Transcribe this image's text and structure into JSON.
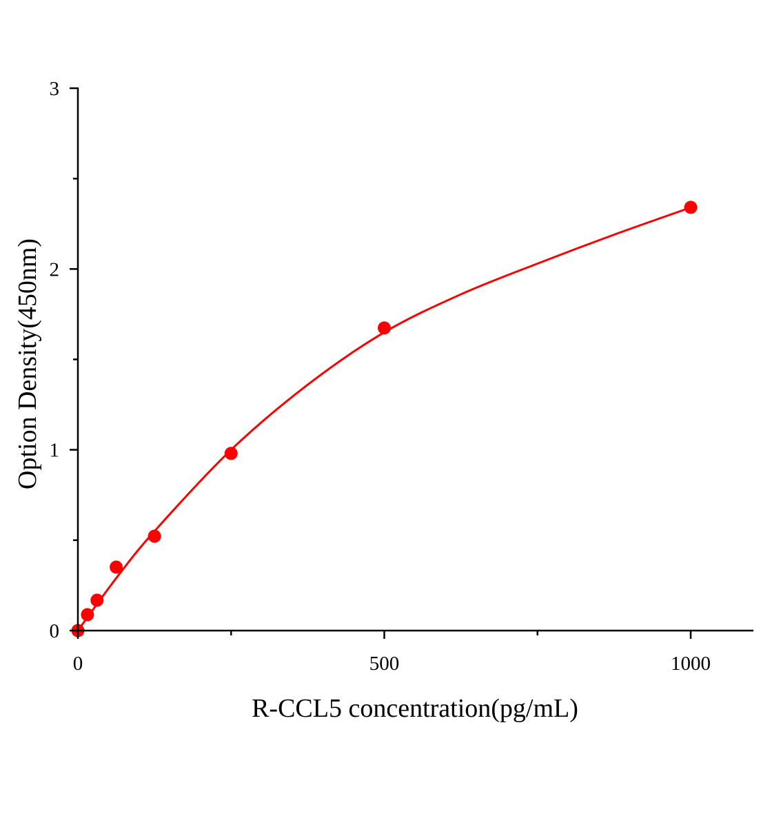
{
  "chart_data": {
    "type": "scatter",
    "title": "",
    "xlabel": "R-CCL5 concentration(pg/mL)",
    "ylabel": "Option Density(450nm)",
    "xlim": [
      0,
      1090
    ],
    "ylim": [
      0,
      3
    ],
    "x_ticks": [
      0,
      500,
      1000
    ],
    "x_tick_labels": [
      "0",
      "500",
      "1000"
    ],
    "x_minor_ticks": [
      250,
      750
    ],
    "y_ticks": [
      0,
      1,
      2,
      3
    ],
    "y_tick_labels": [
      "0",
      "1",
      "2",
      "3"
    ],
    "y_minor_ticks": [
      0.5,
      1.5,
      2.5
    ],
    "grid": false,
    "color": "#ff0000",
    "series": [
      {
        "x": [
          0,
          15.6,
          31.25,
          62.5,
          125,
          250,
          500,
          1000
        ],
        "y": [
          0.0,
          0.088,
          0.168,
          0.351,
          0.522,
          0.98,
          1.674,
          2.341
        ]
      }
    ],
    "fit_curve": {
      "x": [
        0,
        62.5,
        125,
        250,
        375,
        500,
        625,
        750,
        875,
        1000
      ],
      "y": [
        0,
        0.29,
        0.55,
        1.0,
        1.36,
        1.65,
        1.86,
        2.03,
        2.19,
        2.34
      ]
    }
  }
}
